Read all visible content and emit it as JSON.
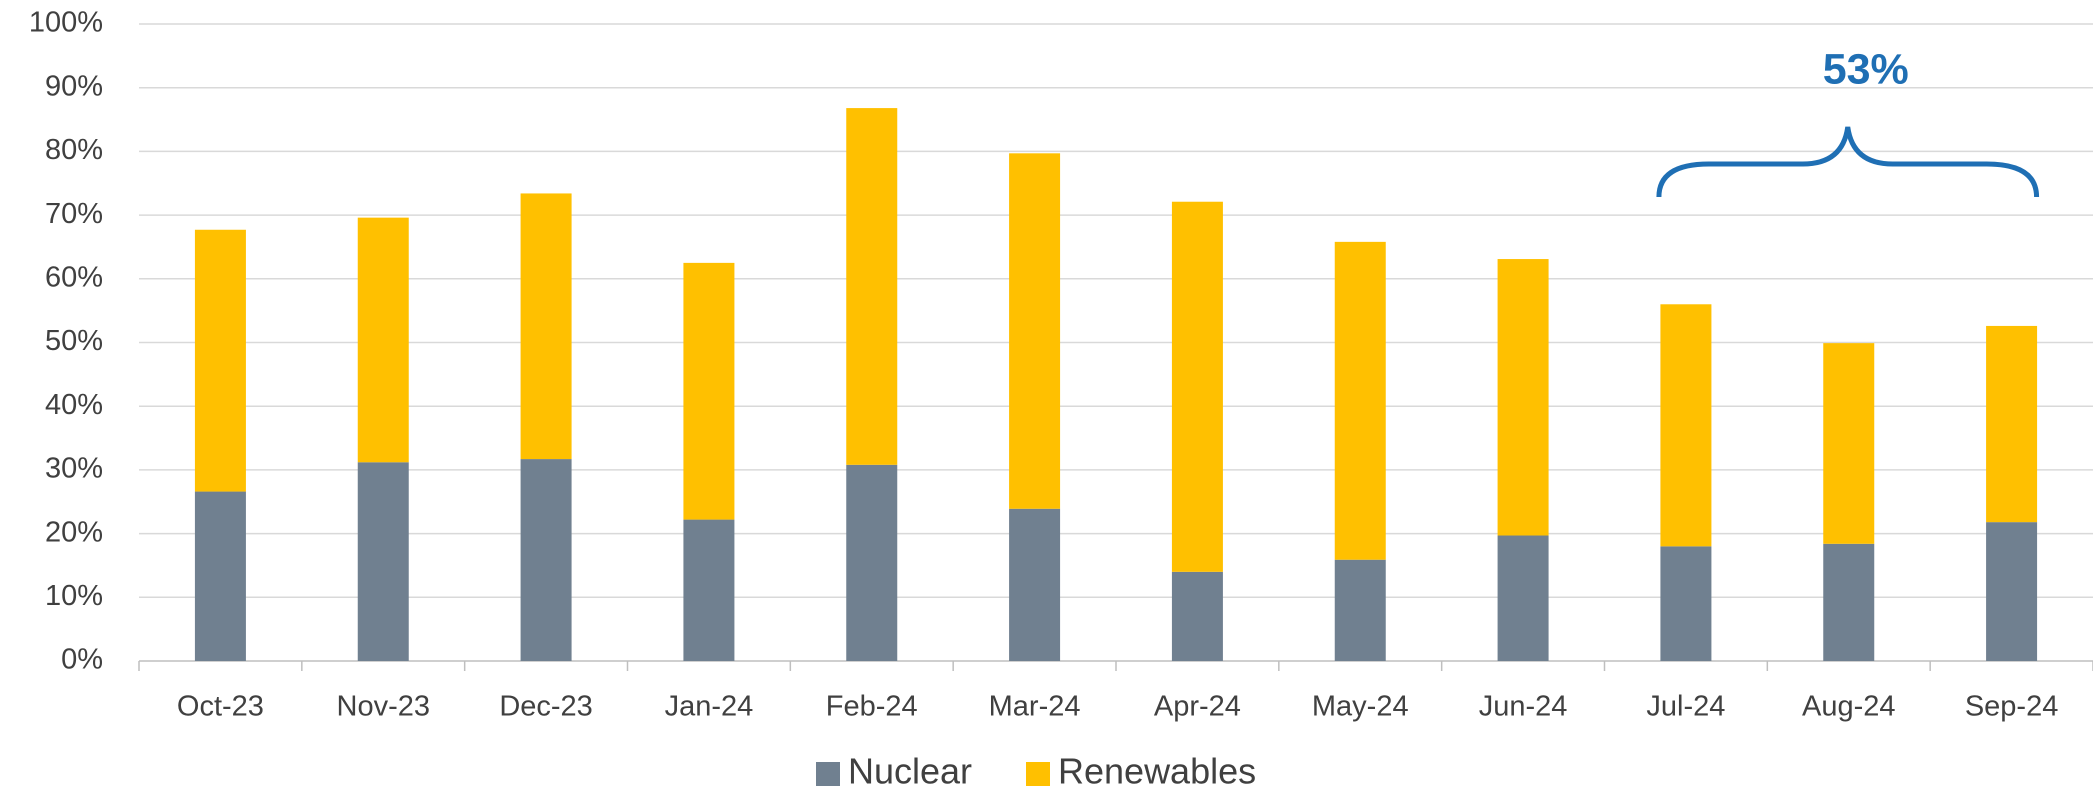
{
  "chart_data": {
    "type": "stacked_bar",
    "categories": [
      "Oct-23",
      "Nov-23",
      "Dec-23",
      "Jan-24",
      "Feb-24",
      "Mar-24",
      "Apr-24",
      "May-24",
      "Jun-24",
      "Jul-24",
      "Aug-24",
      "Sep-24"
    ],
    "series": [
      {
        "name": "Nuclear",
        "color": "#708090",
        "values": [
          26.6,
          31.2,
          31.7,
          22.2,
          30.8,
          23.9,
          14.0,
          15.9,
          19.7,
          18.0,
          18.4,
          21.8
        ]
      },
      {
        "name": "Renewables",
        "color": "#ffc000",
        "values": [
          41.1,
          38.4,
          41.7,
          40.3,
          56.0,
          55.8,
          58.1,
          49.9,
          43.4,
          38.0,
          31.5,
          30.8
        ]
      }
    ],
    "ylim": [
      0,
      100
    ],
    "yticks": [
      {
        "value": 0,
        "label": "0%"
      },
      {
        "value": 10,
        "label": "10%"
      },
      {
        "value": 20,
        "label": "20%"
      },
      {
        "value": 30,
        "label": "30%"
      },
      {
        "value": 40,
        "label": "40%"
      },
      {
        "value": 50,
        "label": "50%"
      },
      {
        "value": 60,
        "label": "60%"
      },
      {
        "value": 70,
        "label": "70%"
      },
      {
        "value": 80,
        "label": "80%"
      },
      {
        "value": 90,
        "label": "90%"
      },
      {
        "value": 100,
        "label": "100%"
      }
    ],
    "grid": true,
    "legend": "bottom",
    "annotation": {
      "text": "53%",
      "color": "#1f6fb4"
    }
  }
}
